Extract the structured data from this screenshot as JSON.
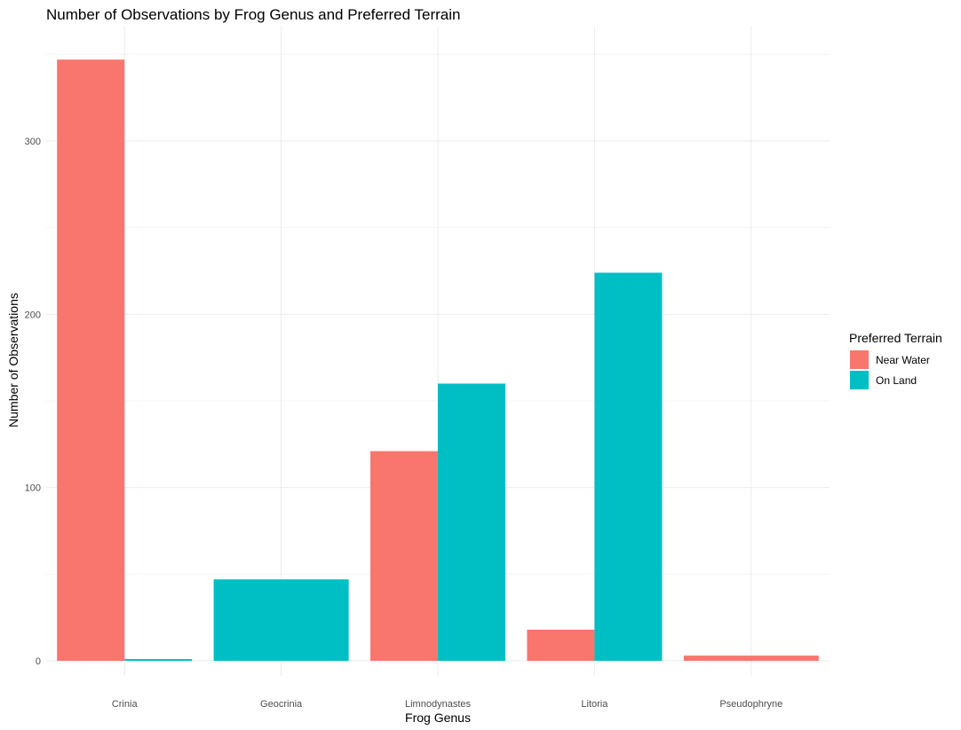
{
  "chart_data": {
    "type": "bar",
    "title": "Number of Observations by Frog Genus and Preferred Terrain",
    "xlabel": "Frog Genus",
    "ylabel": "Number of Observations",
    "categories": [
      "Crinia",
      "Geocrinia",
      "Limnodynastes",
      "Litoria",
      "Pseudophryne"
    ],
    "series": [
      {
        "name": "Near Water",
        "color": "#F8766D",
        "values": [
          347,
          null,
          121,
          18,
          3
        ]
      },
      {
        "name": "On Land",
        "color": "#00BFC4",
        "values": [
          1,
          47,
          160,
          224,
          null
        ]
      }
    ],
    "ylim": [
      0,
      350
    ],
    "yticks": [
      0,
      100,
      200,
      300
    ],
    "legend": {
      "title": "Preferred Terrain",
      "placement": "right"
    },
    "grid": true
  }
}
